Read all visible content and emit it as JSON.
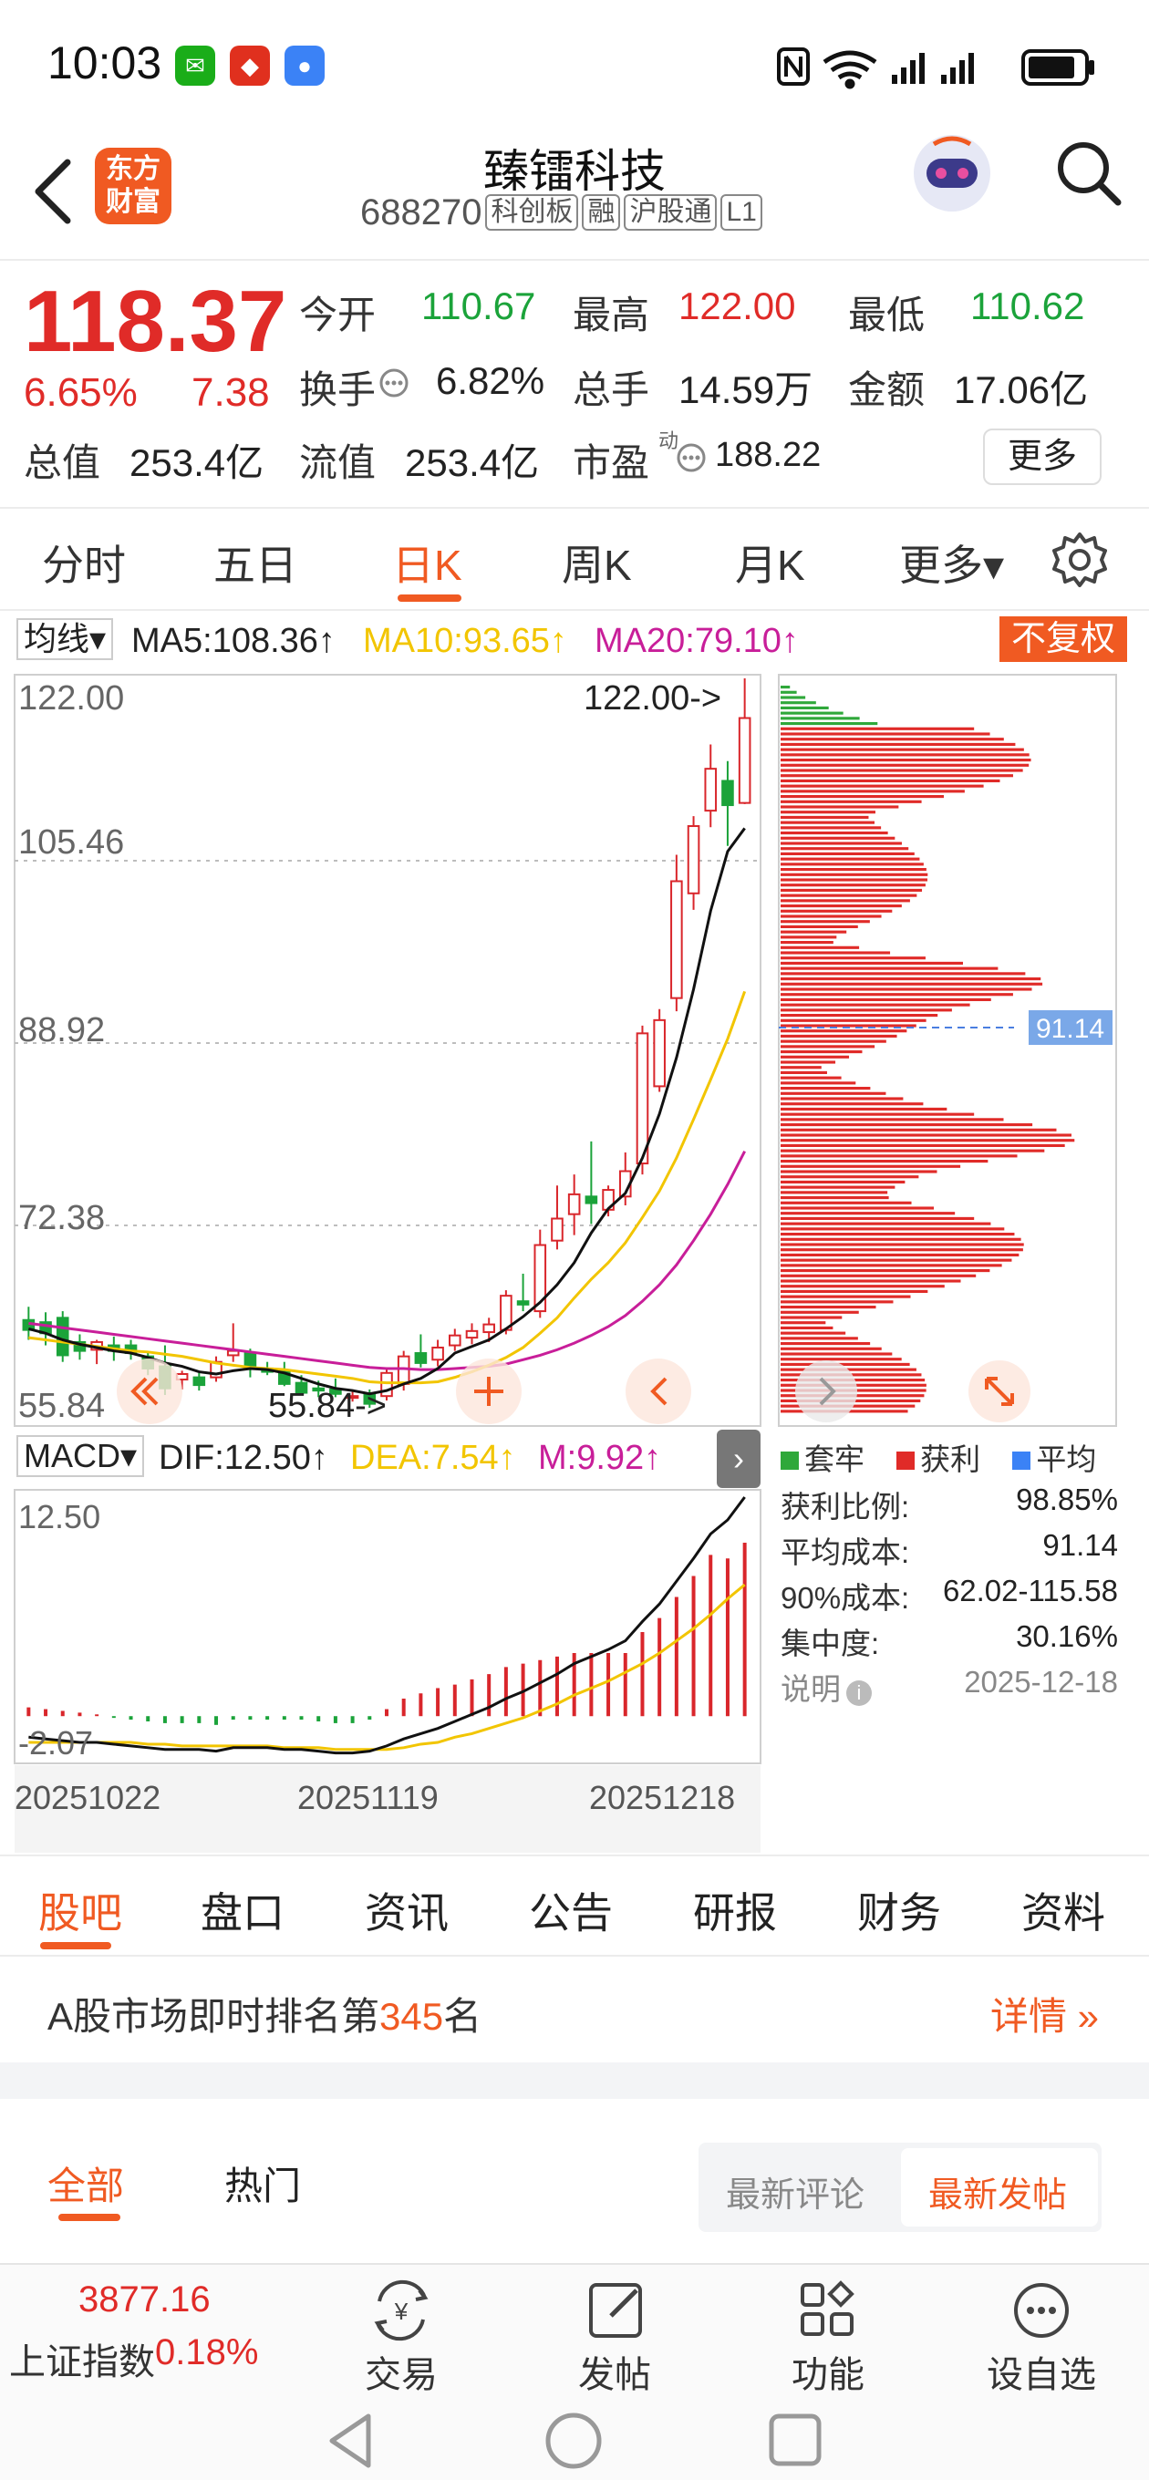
{
  "status_bar": {
    "time": "10:03"
  },
  "header": {
    "logo_text": "东方财富",
    "stock_name": "臻镭科技",
    "stock_code": "688270",
    "tags": [
      "科创板",
      "融",
      "沪股通",
      "L1"
    ]
  },
  "quote": {
    "price": "118.37",
    "change_pct": "6.65%",
    "change": "7.38",
    "fields": [
      {
        "label": "今开",
        "value": "110.67",
        "color": "green"
      },
      {
        "label": "最高",
        "value": "122.00",
        "color": "red"
      },
      {
        "label": "最低",
        "value": "110.62",
        "color": "green"
      },
      {
        "label": "换手",
        "value": "6.82%",
        "color": "black"
      },
      {
        "label": "总手",
        "value": "14.59万",
        "color": "black"
      },
      {
        "label": "金额",
        "value": "17.06亿",
        "color": "black"
      },
      {
        "label": "总值",
        "value": "253.4亿",
        "color": "black"
      },
      {
        "label": "流值",
        "value": "253.4亿",
        "color": "black"
      },
      {
        "label": "市盈",
        "value": "188.22",
        "color": "black"
      }
    ],
    "pe_superscript": "动",
    "more_label": "更多"
  },
  "period_tabs": [
    "分时",
    "五日",
    "日K",
    "周K",
    "月K",
    "更多▾"
  ],
  "active_period": "日K",
  "ma_row": {
    "selector": "均线▾",
    "ma5": "MA5:108.36↑",
    "ma10": "MA10:93.65↑",
    "ma20": "MA20:79.10↑",
    "adjust": "不复权"
  },
  "chart_data": [
    {
      "type": "candlestick",
      "y_tick_labels": [
        "122.00",
        "105.46",
        "88.92",
        "72.38",
        "55.84"
      ],
      "ylim": [
        55.84,
        122.0
      ],
      "max_annotation": "122.00->",
      "min_annotation": "55.84->",
      "chip_average_label": "91.14",
      "candles": [
        {
          "o": 63.8,
          "h": 65.0,
          "l": 62.0,
          "c": 62.9
        },
        {
          "o": 63.6,
          "h": 64.5,
          "l": 61.5,
          "c": 62.6
        },
        {
          "o": 64.0,
          "h": 64.6,
          "l": 60.0,
          "c": 60.6
        },
        {
          "o": 61.8,
          "h": 62.5,
          "l": 60.2,
          "c": 61.0
        },
        {
          "o": 61.1,
          "h": 62.0,
          "l": 59.8,
          "c": 61.8
        },
        {
          "o": 61.5,
          "h": 62.3,
          "l": 60.1,
          "c": 61.0
        },
        {
          "o": 61.5,
          "h": 62.0,
          "l": 60.2,
          "c": 60.8
        },
        {
          "o": 60.5,
          "h": 61.0,
          "l": 58.8,
          "c": 59.4
        },
        {
          "o": 59.6,
          "h": 61.5,
          "l": 57.0,
          "c": 57.6
        },
        {
          "o": 58.4,
          "h": 59.2,
          "l": 57.5,
          "c": 58.9
        },
        {
          "o": 58.6,
          "h": 59.0,
          "l": 57.4,
          "c": 57.9
        },
        {
          "o": 58.6,
          "h": 60.5,
          "l": 58.2,
          "c": 60.0
        },
        {
          "o": 60.6,
          "h": 63.5,
          "l": 60.0,
          "c": 61.0
        },
        {
          "o": 60.8,
          "h": 61.2,
          "l": 58.6,
          "c": 59.4
        },
        {
          "o": 59.4,
          "h": 60.0,
          "l": 58.8,
          "c": 59.1
        },
        {
          "o": 59.2,
          "h": 60.0,
          "l": 57.8,
          "c": 58.0
        },
        {
          "o": 58.1,
          "h": 58.8,
          "l": 57.0,
          "c": 57.2
        },
        {
          "o": 57.6,
          "h": 58.3,
          "l": 56.8,
          "c": 57.4
        },
        {
          "o": 57.5,
          "h": 58.5,
          "l": 56.8,
          "c": 57.1
        },
        {
          "o": 56.9,
          "h": 57.5,
          "l": 56.4,
          "c": 56.9
        },
        {
          "o": 57.0,
          "h": 57.5,
          "l": 55.84,
          "c": 56.2
        },
        {
          "o": 56.9,
          "h": 59.5,
          "l": 56.5,
          "c": 59.0
        },
        {
          "o": 58.0,
          "h": 61.0,
          "l": 57.4,
          "c": 60.5
        },
        {
          "o": 60.8,
          "h": 62.5,
          "l": 59.5,
          "c": 59.9
        },
        {
          "o": 60.2,
          "h": 62.0,
          "l": 59.6,
          "c": 61.3
        },
        {
          "o": 61.5,
          "h": 63.0,
          "l": 61.0,
          "c": 62.4
        },
        {
          "o": 62.2,
          "h": 63.5,
          "l": 61.6,
          "c": 62.8
        },
        {
          "o": 62.7,
          "h": 64.0,
          "l": 61.8,
          "c": 63.4
        },
        {
          "o": 62.9,
          "h": 66.5,
          "l": 62.5,
          "c": 66.0
        },
        {
          "o": 65.5,
          "h": 68.0,
          "l": 64.6,
          "c": 65.2
        },
        {
          "o": 64.6,
          "h": 72.0,
          "l": 64.0,
          "c": 70.6
        },
        {
          "o": 71.0,
          "h": 76.0,
          "l": 70.2,
          "c": 73.0
        },
        {
          "o": 73.4,
          "h": 77.0,
          "l": 71.5,
          "c": 75.2
        },
        {
          "o": 75.0,
          "h": 80.0,
          "l": 72.5,
          "c": 74.4
        },
        {
          "o": 73.8,
          "h": 76.0,
          "l": 73.2,
          "c": 75.6
        },
        {
          "o": 75.0,
          "h": 79.0,
          "l": 74.2,
          "c": 77.3
        },
        {
          "o": 78.0,
          "h": 90.5,
          "l": 77.0,
          "c": 89.8
        },
        {
          "o": 85.0,
          "h": 92.0,
          "l": 84.5,
          "c": 91.0
        },
        {
          "o": 93.0,
          "h": 106.0,
          "l": 91.8,
          "c": 103.6
        },
        {
          "o": 102.5,
          "h": 109.5,
          "l": 101.0,
          "c": 108.6
        },
        {
          "o": 110.0,
          "h": 116.0,
          "l": 108.5,
          "c": 113.8
        },
        {
          "o": 112.7,
          "h": 114.5,
          "l": 106.8,
          "c": 110.5
        },
        {
          "o": 110.7,
          "h": 122.0,
          "l": 110.6,
          "c": 118.4
        }
      ],
      "ma5": [
        63.0,
        62.6,
        62.0,
        61.6,
        61.3,
        61.0,
        60.8,
        60.4,
        59.9,
        59.6,
        59.1,
        58.9,
        59.2,
        59.4,
        59.3,
        59.0,
        58.5,
        58.0,
        57.6,
        57.4,
        57.1,
        57.4,
        58.0,
        58.5,
        59.4,
        60.8,
        61.4,
        62.0,
        63.0,
        64.1,
        65.4,
        67.0,
        69.0,
        71.7,
        73.9,
        75.3,
        78.5,
        82.5,
        87.6,
        93.8,
        100.9,
        106.3,
        108.4
      ],
      "ma10": [
        62.2,
        62.0,
        61.8,
        61.6,
        61.4,
        61.2,
        61.0,
        60.9,
        60.7,
        60.5,
        60.2,
        59.9,
        59.7,
        59.5,
        59.4,
        59.3,
        59.1,
        58.9,
        58.7,
        58.5,
        58.2,
        58.1,
        58.1,
        58.1,
        58.2,
        58.6,
        59.1,
        59.7,
        60.4,
        61.3,
        62.6,
        64.0,
        65.8,
        67.5,
        69.0,
        70.8,
        73.1,
        75.5,
        78.5,
        82.0,
        85.6,
        89.3,
        93.6
      ],
      "ma20": [
        63.5,
        63.3,
        63.1,
        62.9,
        62.7,
        62.5,
        62.3,
        62.1,
        61.9,
        61.7,
        61.5,
        61.3,
        61.1,
        60.9,
        60.7,
        60.5,
        60.3,
        60.1,
        59.9,
        59.7,
        59.5,
        59.4,
        59.4,
        59.3,
        59.3,
        59.4,
        59.5,
        59.6,
        59.8,
        60.2,
        60.6,
        61.1,
        61.7,
        62.4,
        63.2,
        64.2,
        65.5,
        67.0,
        68.8,
        71.0,
        73.4,
        76.1,
        79.1
      ]
    },
    {
      "type": "macd",
      "indicator_selector": "MACD▾",
      "dif_label": "DIF:12.50↑",
      "dea_label": "DEA:7.54↑",
      "m_label": "M:9.92↑",
      "y_tick_labels": [
        "12.50",
        "-2.07"
      ],
      "ylim": [
        -2.07,
        12.5
      ],
      "x_tick_labels": [
        "20251022",
        "20251119",
        "20251218"
      ],
      "dif": [
        -1.2,
        -1.3,
        -1.4,
        -1.5,
        -1.5,
        -1.6,
        -1.7,
        -1.8,
        -1.9,
        -1.9,
        -1.9,
        -2.0,
        -1.8,
        -1.8,
        -1.8,
        -1.9,
        -1.9,
        -2.0,
        -2.1,
        -2.1,
        -2.0,
        -1.7,
        -1.3,
        -1.0,
        -0.7,
        -0.3,
        0.1,
        0.5,
        1.0,
        1.4,
        1.9,
        2.4,
        3.0,
        3.4,
        3.8,
        4.3,
        5.4,
        6.4,
        7.7,
        9.0,
        10.4,
        11.2,
        12.5
      ],
      "dea": [
        -1.5,
        -1.5,
        -1.5,
        -1.5,
        -1.5,
        -1.5,
        -1.5,
        -1.6,
        -1.6,
        -1.7,
        -1.7,
        -1.7,
        -1.7,
        -1.7,
        -1.7,
        -1.8,
        -1.8,
        -1.8,
        -1.9,
        -1.9,
        -1.9,
        -1.9,
        -1.8,
        -1.6,
        -1.5,
        -1.2,
        -1.0,
        -0.7,
        -0.4,
        -0.1,
        0.3,
        0.7,
        1.2,
        1.6,
        2.0,
        2.5,
        3.0,
        3.6,
        4.3,
        5.0,
        5.8,
        6.7,
        7.5
      ],
      "m": [
        0.5,
        0.4,
        0.3,
        0.2,
        0.1,
        -0.1,
        -0.2,
        -0.3,
        -0.4,
        -0.4,
        -0.4,
        -0.5,
        -0.2,
        -0.2,
        -0.2,
        -0.2,
        -0.2,
        -0.3,
        -0.4,
        -0.4,
        -0.2,
        0.4,
        1.0,
        1.3,
        1.6,
        1.8,
        2.1,
        2.4,
        2.8,
        3.0,
        3.2,
        3.4,
        3.6,
        3.6,
        3.6,
        3.6,
        4.8,
        5.6,
        6.8,
        8.0,
        9.2,
        9.0,
        9.9
      ]
    },
    {
      "type": "chip-distribution",
      "legend": [
        "套牢",
        "获利",
        "平均"
      ],
      "average_label": "91.14",
      "info": [
        {
          "label": "获利比例:",
          "value": "98.85%"
        },
        {
          "label": "平均成本:",
          "value": "91.14"
        },
        {
          "label": "90%成本:",
          "value": "62.02-115.58"
        },
        {
          "label": "集中度:",
          "value": "30.16%"
        }
      ],
      "note_label": "说明",
      "date": "2025-12-18"
    }
  ],
  "content_tabs": [
    "股吧",
    "盘口",
    "资讯",
    "公告",
    "研报",
    "财务",
    "资料"
  ],
  "rank": {
    "prefix": "A股市场即时排名第",
    "number": "345",
    "suffix": "名",
    "detail": "详情"
  },
  "post_tabs": {
    "tabs": [
      "全部",
      "热门"
    ],
    "sort": [
      "最新评论",
      "最新发帖"
    ]
  },
  "bottom_bar": {
    "index_value": "3877.16",
    "index_name": "上证指数",
    "index_change": "0.18%",
    "items": [
      "交易",
      "发帖",
      "功能",
      "设自选"
    ]
  }
}
